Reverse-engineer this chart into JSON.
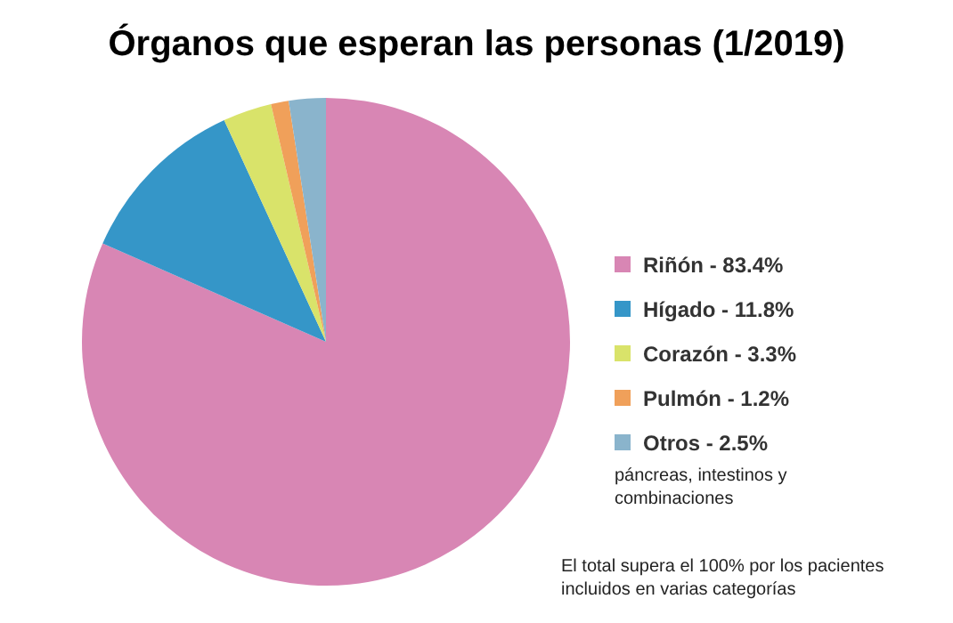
{
  "chart_data": {
    "type": "pie",
    "title": "Órganos que esperan las personas (1/2019)",
    "categories": [
      "Riñón",
      "Hígado",
      "Corazón",
      "Pulmón",
      "Otros"
    ],
    "values": [
      83.4,
      11.8,
      3.3,
      1.2,
      2.5
    ],
    "value_labels": [
      "83.4%",
      "11.8%",
      "3.3%",
      "1.2%",
      "2.5%"
    ],
    "colors": [
      "#d886b4",
      "#3596c8",
      "#d9e36a",
      "#f0a05a",
      "#8ab4cc"
    ],
    "legend": "right",
    "annotations": [
      "páncreas, intestinos y combinaciones",
      "El total supera el 100% por los pacientes incluidos en varias categorías"
    ]
  }
}
